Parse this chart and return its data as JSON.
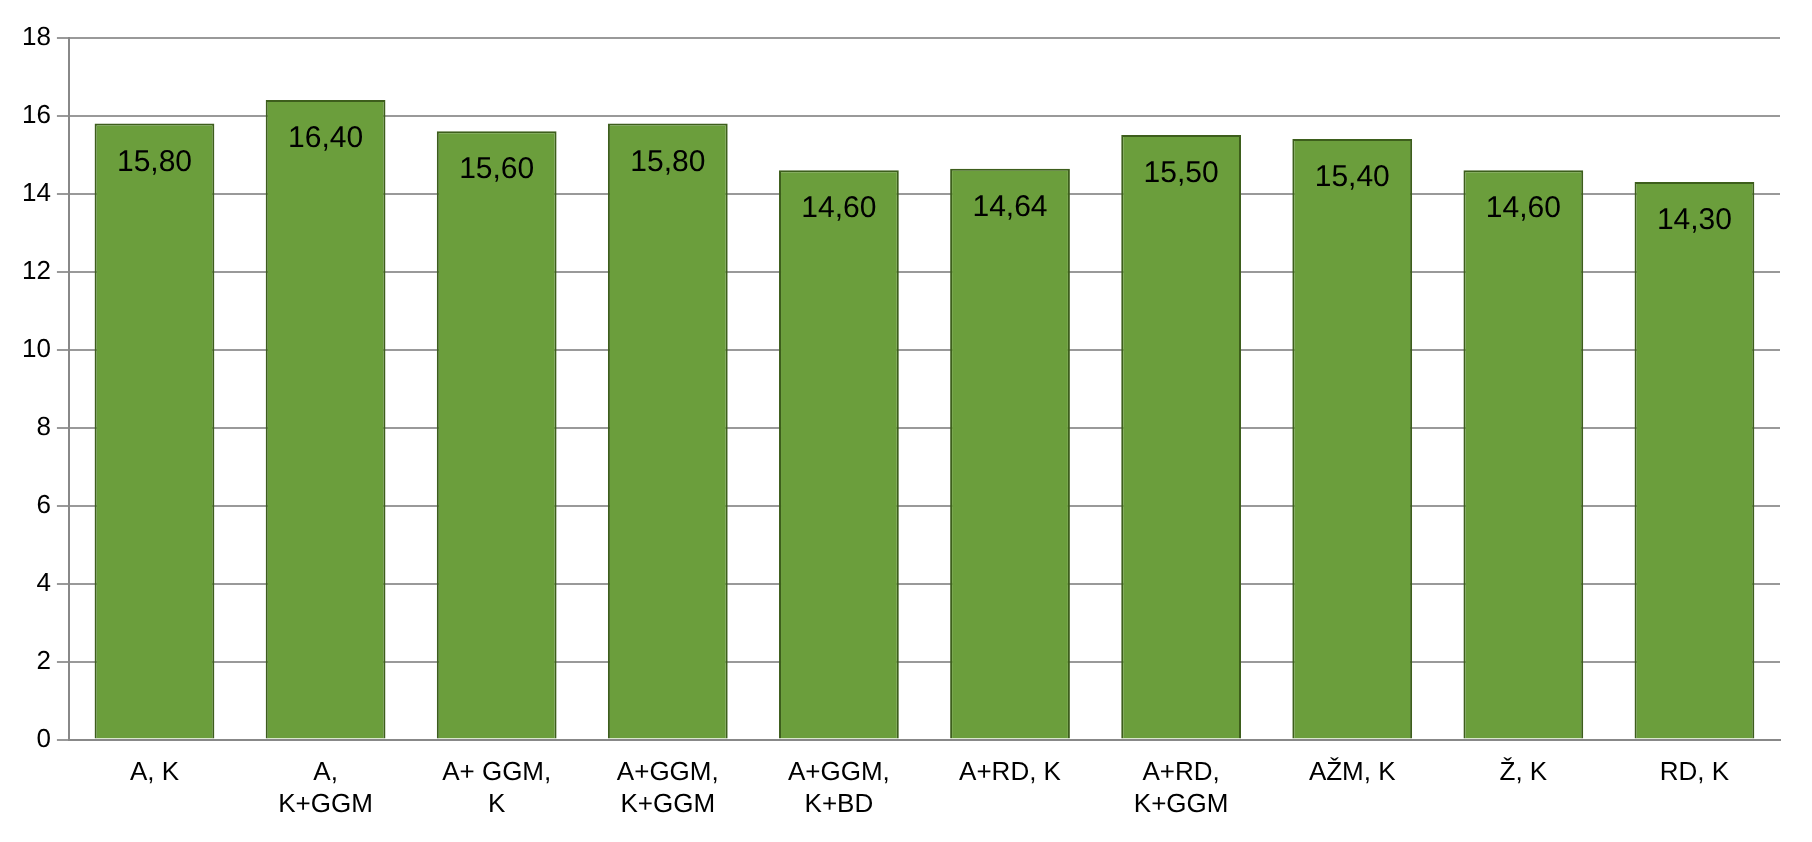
{
  "chart_data": {
    "type": "bar",
    "categories": [
      "A, K",
      "A, K+GGM",
      "A+ GGM, K",
      "A+GGM, K+GGM",
      "A+GGM, K+BD",
      "A+RD, K",
      "A+RD, K+GGM",
      "AŽM, K",
      "Ž, K",
      "RD, K"
    ],
    "values": [
      15.8,
      16.4,
      15.6,
      15.8,
      14.6,
      14.64,
      15.5,
      15.4,
      14.6,
      14.3
    ],
    "value_labels": [
      "15,80",
      "16,40",
      "15,60",
      "15,80",
      "14,60",
      "14,64",
      "15,50",
      "15,40",
      "14,60",
      "14,30"
    ],
    "color": "#6b9e3c",
    "ylim": [
      0,
      18
    ],
    "yticks": [
      0,
      2,
      4,
      6,
      8,
      10,
      12,
      14,
      16,
      18
    ],
    "grid": "y",
    "legend": false
  }
}
